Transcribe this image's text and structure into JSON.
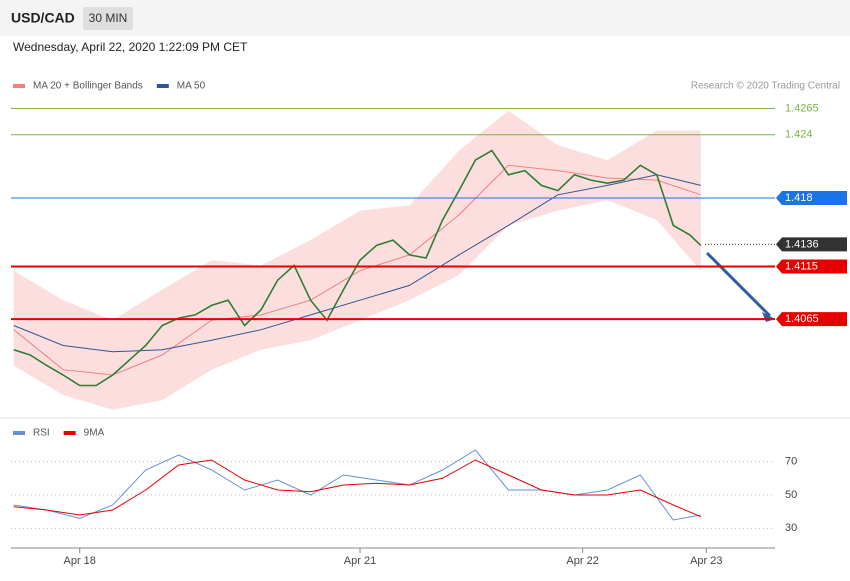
{
  "header": {
    "symbol": "USD/CAD",
    "timeframe": "30 MIN",
    "datetime": "Wednesday, April 22, 2020 1:22:09 PM CET"
  },
  "credit": "Research © 2020 Trading Central",
  "chart_data": [
    {
      "type": "line",
      "xlim": [
        -0.5,
        138.5
      ],
      "ylim": [
        1.3974,
        1.4311
      ],
      "series": [
        {
          "name": "MA 20 + Bollinger Bands",
          "color": "#f08080",
          "x": [
            0,
            9,
            18,
            27,
            36,
            45,
            54,
            63,
            72,
            81,
            90,
            99,
            108,
            117,
            125
          ],
          "values": [
            1.4055,
            1.4017,
            1.4012,
            1.4031,
            1.4064,
            1.4069,
            1.4083,
            1.4111,
            1.4126,
            1.4164,
            1.4211,
            1.4206,
            1.4199,
            1.4197,
            1.4183
          ],
          "upper": [
            1.4111,
            1.4083,
            1.4064,
            1.4093,
            1.4121,
            1.4116,
            1.414,
            1.4168,
            1.4173,
            1.4225,
            1.4263,
            1.423,
            1.4216,
            1.4244,
            1.4244
          ],
          "lower": [
            1.4021,
            1.3993,
            1.3979,
            1.3988,
            1.4017,
            1.4036,
            1.4045,
            1.4064,
            1.4083,
            1.4107,
            1.4154,
            1.4168,
            1.4178,
            1.4159,
            1.4111
          ]
        },
        {
          "name": "MA 50",
          "color": "#2f5597",
          "x": [
            0,
            9,
            18,
            27,
            36,
            45,
            54,
            63,
            72,
            81,
            90,
            99,
            108,
            117,
            125
          ],
          "values": [
            1.4059,
            1.404,
            1.4034,
            1.4036,
            1.4045,
            1.4055,
            1.4069,
            1.4083,
            1.4097,
            1.4126,
            1.4154,
            1.4183,
            1.4192,
            1.4202,
            1.4192
          ]
        },
        {
          "color": "#2e7d32",
          "x": [
            0,
            3,
            6,
            9,
            12,
            15,
            18,
            21,
            24,
            27,
            30,
            33,
            36,
            39,
            42,
            45,
            48,
            51,
            54,
            57,
            60,
            63,
            66,
            69,
            72,
            75,
            78,
            81,
            84,
            87,
            90,
            93,
            96,
            99,
            102,
            105,
            108,
            111,
            114,
            117,
            120,
            123,
            125
          ],
          "values": [
            1.4036,
            1.4031,
            1.4021,
            1.4012,
            1.4002,
            1.4002,
            1.4012,
            1.4026,
            1.404,
            1.4059,
            1.4066,
            1.4069,
            1.4078,
            1.4083,
            1.4059,
            1.4074,
            1.4102,
            1.4116,
            1.4083,
            1.4064,
            1.4093,
            1.4121,
            1.4135,
            1.414,
            1.4126,
            1.4123,
            1.4159,
            1.4187,
            1.4216,
            1.4225,
            1.4202,
            1.4206,
            1.4192,
            1.4187,
            1.4202,
            1.4197,
            1.4194,
            1.4197,
            1.4211,
            1.4202,
            1.4154,
            1.4145,
            1.4135
          ]
        }
      ],
      "levels": [
        {
          "value": 1.4265,
          "color": "#7cb342"
        },
        {
          "value": 1.424,
          "color": "#7cb342"
        },
        {
          "value": 1.418,
          "color": "#1a73e8"
        },
        {
          "value": 1.4136,
          "color": "#333333"
        },
        {
          "value": 1.4115,
          "color": "#e60000"
        },
        {
          "value": 1.4065,
          "color": "#e60000"
        }
      ]
    },
    {
      "type": "line",
      "xlim": [
        -0.5,
        138.5
      ],
      "ylim": [
        20,
        83
      ],
      "yticks": [
        30,
        50,
        70
      ],
      "xticks": [
        {
          "value": 12,
          "label": "Apr 18"
        },
        {
          "value": 63,
          "label": "Apr 21"
        },
        {
          "value": 103.5,
          "label": "Apr 22"
        },
        {
          "value": 126,
          "label": "Apr 23"
        }
      ],
      "series": [
        {
          "name": "RSI",
          "color": "#6a8fd8",
          "x": [
            0,
            6,
            12,
            18,
            24,
            30,
            36,
            42,
            48,
            54,
            60,
            66,
            72,
            78,
            84,
            90,
            96,
            102,
            108,
            114,
            120,
            125
          ],
          "values": [
            44,
            41,
            36,
            44,
            65,
            74,
            65,
            53,
            59,
            50,
            62,
            59,
            56,
            65,
            77,
            53,
            53,
            50,
            53,
            62,
            35,
            38
          ]
        },
        {
          "name": "9MA",
          "color": "#e60000",
          "x": [
            0,
            6,
            12,
            18,
            24,
            30,
            36,
            42,
            48,
            54,
            60,
            66,
            72,
            78,
            84,
            90,
            96,
            102,
            108,
            114,
            120,
            125
          ],
          "values": [
            43,
            41,
            38,
            41,
            53,
            68,
            71,
            59,
            53,
            52,
            56,
            57,
            56,
            60,
            71,
            62,
            53,
            50,
            50,
            53,
            44,
            37
          ]
        }
      ]
    }
  ]
}
